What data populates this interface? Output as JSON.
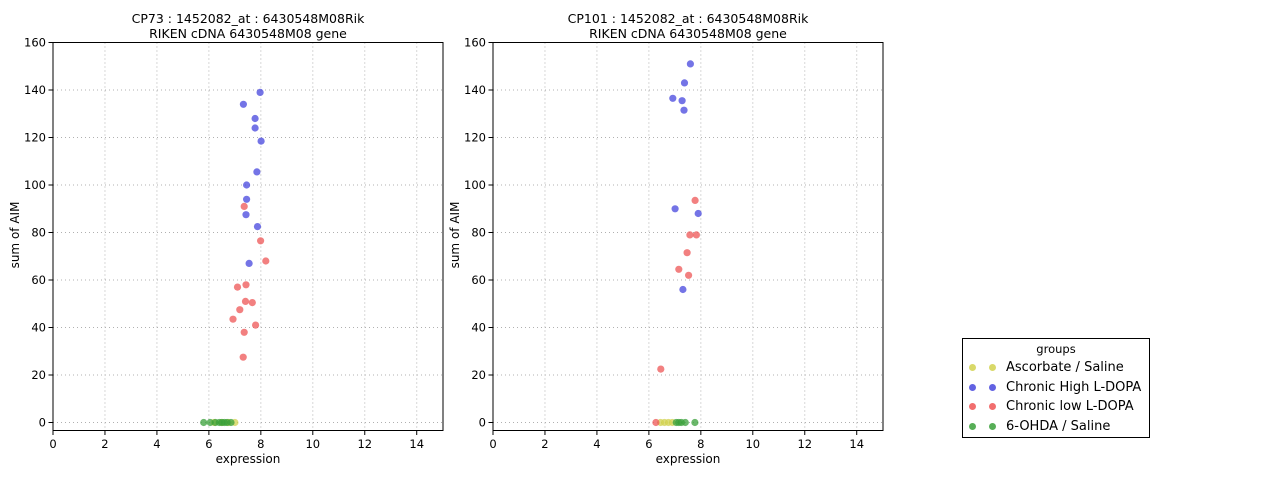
{
  "figure": {
    "background": "#ffffff"
  },
  "colors": {
    "ascorbate": "#d2d24f",
    "high": "#4646dd",
    "low": "#ee5555",
    "ohda": "#3aa03a"
  },
  "legend": {
    "title": "groups",
    "entries": [
      {
        "id": "ascorbate",
        "label": "Ascorbate / Saline"
      },
      {
        "id": "high",
        "label": "Chronic High L-DOPA"
      },
      {
        "id": "low",
        "label": "Chronic low L-DOPA"
      },
      {
        "id": "ohda",
        "label": "6-OHDA / Saline"
      }
    ]
  },
  "chart_data": [
    {
      "type": "scatter",
      "title_line1": "CP73 : 1452082_at : 6430548M08Rik",
      "title_line2": "RIKEN cDNA 6430548M08 gene",
      "xlabel": "expression",
      "ylabel": "sum of AIM",
      "xlim": [
        0,
        15
      ],
      "ylim": [
        0,
        160
      ],
      "xticks": [
        0,
        2,
        4,
        6,
        8,
        10,
        12,
        14
      ],
      "yticks": [
        0,
        20,
        40,
        60,
        80,
        100,
        120,
        140,
        160
      ],
      "grid": true,
      "series": [
        {
          "name": "Ascorbate / Saline",
          "color_id": "ascorbate",
          "points": [
            [
              6.2,
              0
            ],
            [
              6.5,
              0
            ],
            [
              6.75,
              0
            ],
            [
              7.0,
              0
            ]
          ]
        },
        {
          "name": "Chronic High L-DOPA",
          "color_id": "high",
          "points": [
            [
              7.97,
              139
            ],
            [
              7.33,
              134
            ],
            [
              7.78,
              128
            ],
            [
              7.78,
              124
            ],
            [
              8.01,
              118.5
            ],
            [
              7.85,
              105.5
            ],
            [
              7.45,
              100
            ],
            [
              7.45,
              94
            ],
            [
              7.43,
              87.5
            ],
            [
              7.87,
              82.5
            ],
            [
              7.55,
              67
            ]
          ]
        },
        {
          "name": "Chronic low L-DOPA",
          "color_id": "low",
          "points": [
            [
              7.36,
              91
            ],
            [
              7.99,
              76.5
            ],
            [
              8.19,
              68
            ],
            [
              7.43,
              58
            ],
            [
              7.1,
              57
            ],
            [
              7.41,
              51
            ],
            [
              7.67,
              50.5
            ],
            [
              7.19,
              47.5
            ],
            [
              6.93,
              43.5
            ],
            [
              7.8,
              41
            ],
            [
              7.36,
              38
            ],
            [
              7.32,
              27.5
            ]
          ]
        },
        {
          "name": "6-OHDA / Saline",
          "color_id": "ohda",
          "points": [
            [
              5.8,
              0
            ],
            [
              6.05,
              0
            ],
            [
              6.25,
              0
            ],
            [
              6.4,
              0
            ],
            [
              6.5,
              0
            ],
            [
              6.6,
              0
            ],
            [
              6.7,
              0
            ],
            [
              6.85,
              0
            ]
          ]
        }
      ]
    },
    {
      "type": "scatter",
      "title_line1": "CP101 : 1452082_at : 6430548M08Rik",
      "title_line2": "RIKEN cDNA 6430548M08 gene",
      "xlabel": "expression",
      "ylabel": "sum of AIM",
      "xlim": [
        0,
        15
      ],
      "ylim": [
        0,
        160
      ],
      "xticks": [
        0,
        2,
        4,
        6,
        8,
        10,
        12,
        14
      ],
      "yticks": [
        0,
        20,
        40,
        60,
        80,
        100,
        120,
        140,
        160
      ],
      "grid": true,
      "series": [
        {
          "name": "Ascorbate / Saline",
          "color_id": "ascorbate",
          "points": [
            [
              6.45,
              0
            ],
            [
              6.6,
              0
            ],
            [
              6.75,
              0
            ],
            [
              6.9,
              0
            ]
          ]
        },
        {
          "name": "Chronic High L-DOPA",
          "color_id": "high",
          "points": [
            [
              7.6,
              151
            ],
            [
              7.37,
              143
            ],
            [
              6.92,
              136.5
            ],
            [
              7.28,
              135.5
            ],
            [
              7.35,
              131.5
            ],
            [
              7.01,
              90
            ],
            [
              7.9,
              88
            ],
            [
              7.31,
              56
            ]
          ]
        },
        {
          "name": "Chronic low L-DOPA",
          "color_id": "low",
          "points": [
            [
              7.78,
              93.5
            ],
            [
              7.58,
              79
            ],
            [
              7.83,
              79
            ],
            [
              7.47,
              71.5
            ],
            [
              7.15,
              64.5
            ],
            [
              7.53,
              62
            ],
            [
              6.46,
              22.5
            ],
            [
              6.27,
              0
            ]
          ]
        },
        {
          "name": "6-OHDA / Saline",
          "color_id": "ohda",
          "points": [
            [
              7.05,
              0
            ],
            [
              7.15,
              0
            ],
            [
              7.25,
              0
            ],
            [
              7.4,
              0
            ],
            [
              7.77,
              0
            ]
          ]
        }
      ]
    }
  ]
}
